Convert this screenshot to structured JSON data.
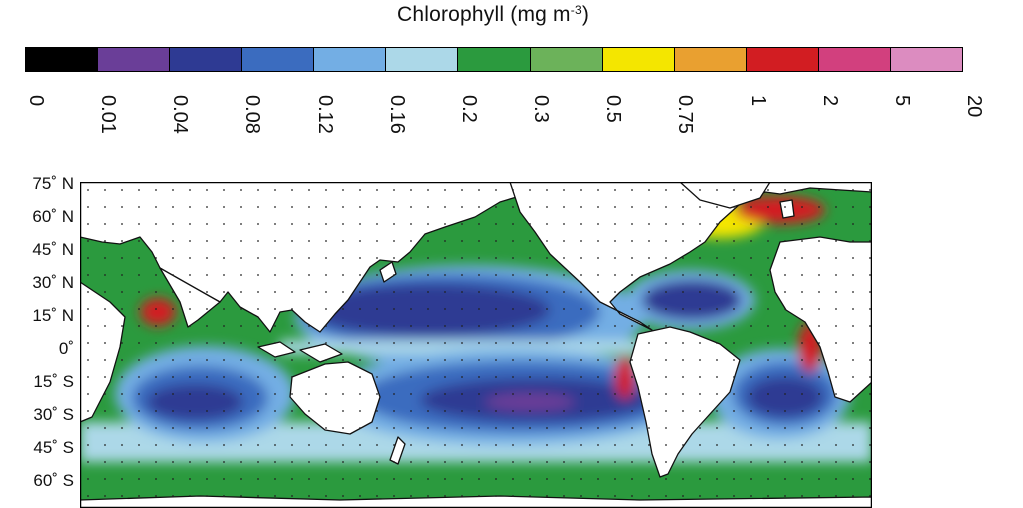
{
  "title": {
    "text": "Chlorophyll (mg m",
    "sup": "-3",
    "close": ")"
  },
  "colorbar": {
    "colors": [
      "#000000",
      "#6a3e98",
      "#2e3a93",
      "#3b6cbf",
      "#73aee4",
      "#acd8e8",
      "#2b9a3e",
      "#6cb25a",
      "#f4e600",
      "#e9a030",
      "#d21d22",
      "#d2407e",
      "#dc8cc0"
    ],
    "ticks": [
      "0",
      "0.01",
      "0.04",
      "0.08",
      "0.12",
      "0.16",
      "0.2",
      "0.3",
      "0.5",
      "0.75",
      "1",
      "2",
      "5",
      "20"
    ]
  },
  "map": {
    "lat_labels": [
      "75˚ N",
      "60˚ N",
      "45˚ N",
      "30˚ N",
      "15˚ N",
      "0˚",
      "15˚ S",
      "30˚ S",
      "45˚ S",
      "60˚ S"
    ],
    "colors": {
      "land": "#ffffff",
      "coast": "#111111",
      "dots": "#222222"
    }
  }
}
